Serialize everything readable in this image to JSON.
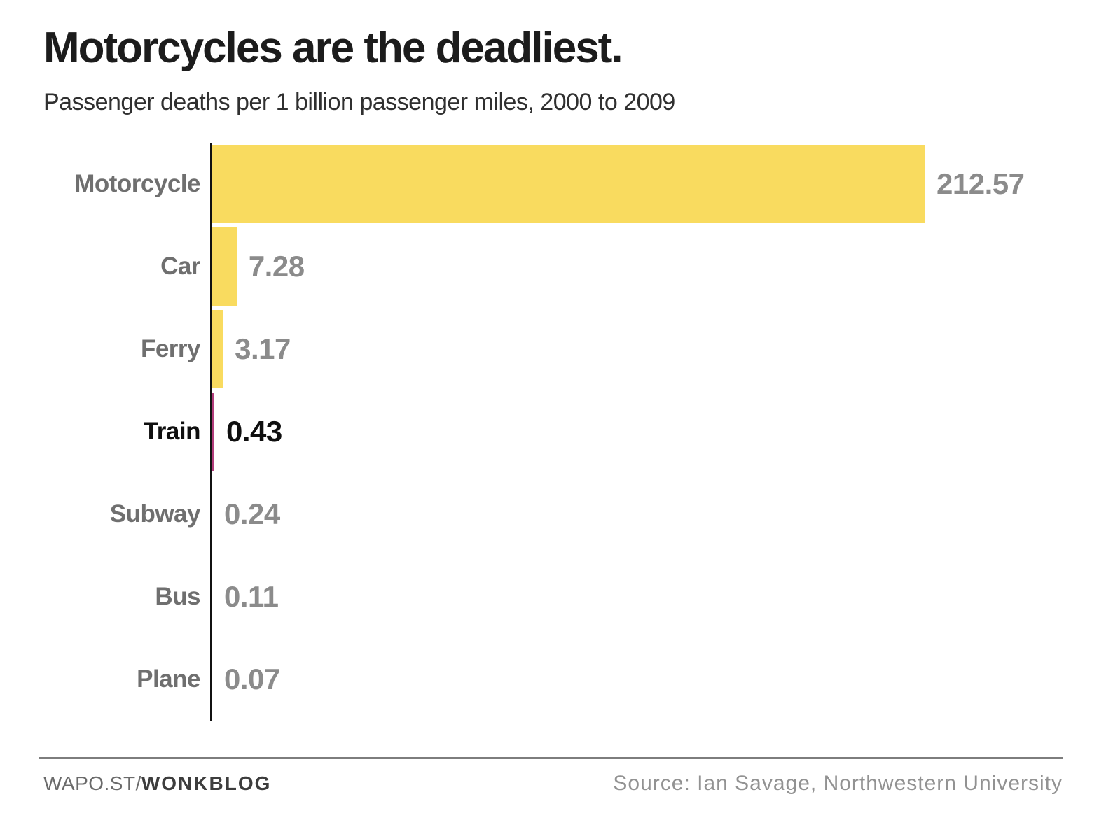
{
  "header": {
    "title": "Motorcycles are the deadliest.",
    "subtitle": "Passenger deaths per 1 billion passenger miles, 2000 to 2009"
  },
  "chart_data": {
    "type": "bar",
    "orientation": "horizontal",
    "title": "Motorcycles are the deadliest.",
    "subtitle": "Passenger deaths per 1 billion passenger miles, 2000 to 2009",
    "categories": [
      "Motorcycle",
      "Car",
      "Ferry",
      "Train",
      "Subway",
      "Bus",
      "Plane"
    ],
    "values": [
      212.57,
      7.28,
      3.17,
      0.43,
      0.24,
      0.11,
      0.07
    ],
    "xlim": [
      0,
      212.57
    ],
    "grid": false,
    "legend": false,
    "highlight_category": "Train",
    "colors": {
      "bar": "#f9db5f",
      "highlight_bar": "#b23d7b",
      "axis": "#111111",
      "category_label": "#6f6f6f",
      "value_label": "#8b8b8b",
      "highlight_text": "#0f0f0f"
    }
  },
  "footer": {
    "brand_prefix": "WAPO.ST/",
    "brand_bold": "WONKBLOG",
    "source": "Source: Ian Savage, Northwestern University"
  }
}
